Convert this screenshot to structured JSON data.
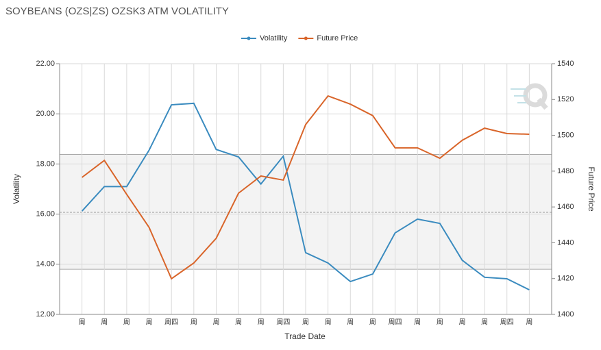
{
  "chart_data": {
    "type": "line",
    "title": "SOYBEANS (OZS|ZS) OZSK3 ATM VOLATILITY",
    "xlabel": "Trade Date",
    "ylabel": "Volatility",
    "y2label": "Future Price",
    "categories": [
      "周",
      "周",
      "周",
      "周",
      "周四",
      "周",
      "周",
      "周",
      "周",
      "周四",
      "周",
      "周",
      "周",
      "周",
      "周四",
      "周",
      "周",
      "周",
      "周",
      "周四",
      "周"
    ],
    "series": [
      {
        "name": "Volatility",
        "color": "#3a8bbf",
        "values": [
          16.12,
          17.1,
          17.1,
          18.55,
          20.36,
          20.42,
          18.58,
          18.28,
          17.2,
          18.31,
          14.46,
          14.05,
          13.31,
          13.61,
          15.25,
          15.8,
          15.63,
          14.16,
          13.48,
          13.42,
          12.98
        ]
      },
      {
        "name": "Future Price",
        "color": "#d9652a",
        "axis": "y2",
        "values": [
          1476.5,
          1486,
          1467,
          1448.6,
          1419.9,
          1428.7,
          1442.5,
          1467.7,
          1477.3,
          1475,
          1506,
          1522,
          1517.4,
          1511,
          1493,
          1493,
          1487.2,
          1497.2,
          1504,
          1501,
          1500.6
        ]
      }
    ],
    "ylim": [
      12,
      22
    ],
    "yticks": [
      {
        "value": 12,
        "label": "12.00"
      },
      {
        "value": 14,
        "label": "14.00"
      },
      {
        "value": 16,
        "label": "16.00"
      },
      {
        "value": 18,
        "label": "18.00"
      },
      {
        "value": 20,
        "label": "20.00"
      },
      {
        "value": 22,
        "label": "22.00"
      }
    ],
    "y2lim": [
      1400,
      1540
    ],
    "y2ticks": [
      1400,
      1420,
      1440,
      1460,
      1480,
      1500,
      1520,
      1540
    ],
    "plot_band": [
      13.8,
      18.38
    ],
    "mean_line": 16.07,
    "grid": true
  }
}
